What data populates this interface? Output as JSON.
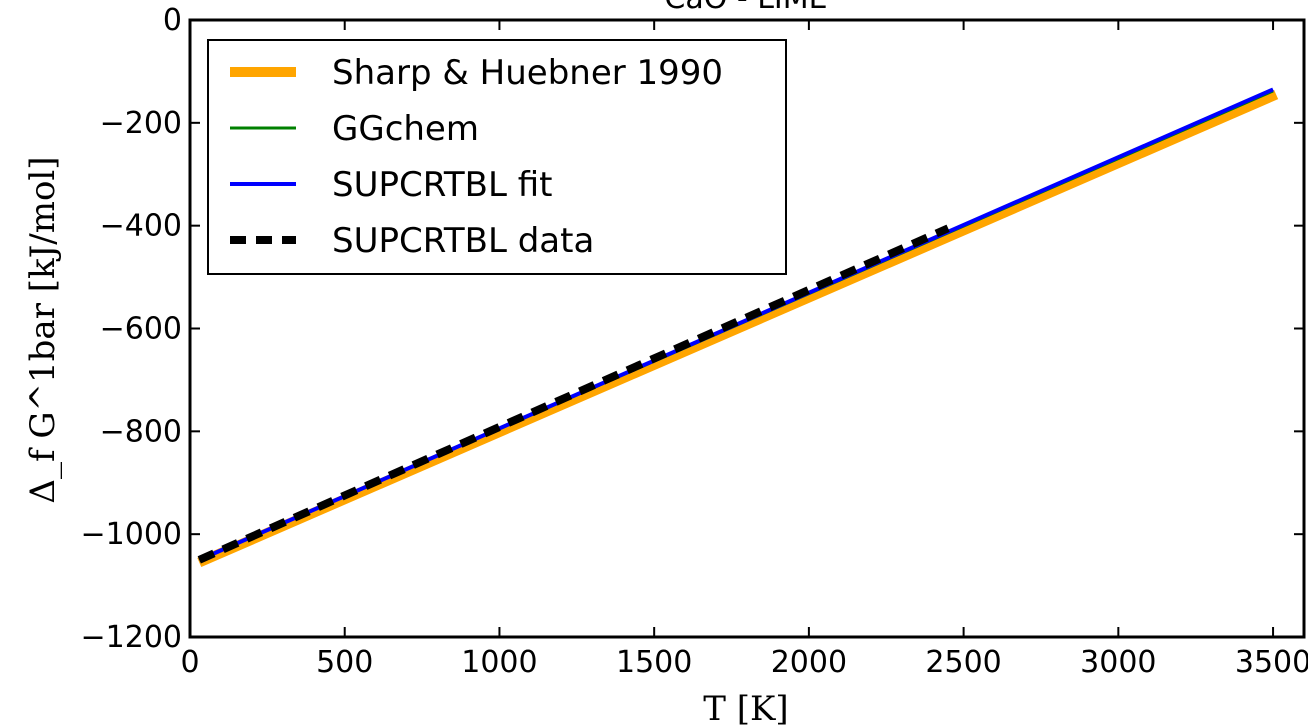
{
  "chart_data": {
    "type": "line",
    "title": "CaO - LIME",
    "xlabel": "T [K]",
    "ylabel": "Δ_f G^1bar [kJ/mol]",
    "xlim": [
      0,
      3600
    ],
    "ylim": [
      -1200,
      0
    ],
    "xticks": [
      0,
      500,
      1000,
      1500,
      2000,
      2500,
      3000,
      3500
    ],
    "yticks": [
      0,
      -200,
      -400,
      -600,
      -800,
      -1000,
      -1200
    ],
    "xtick_labels": [
      "0",
      "500",
      "1000",
      "1500",
      "2000",
      "2500",
      "3000",
      "3500"
    ],
    "ytick_labels": [
      "0",
      "−200",
      "−400",
      "−600",
      "−800",
      "−1000",
      "−1200"
    ],
    "grid": false,
    "legend_position": "top-left",
    "series": [
      {
        "name": "Sharp & Huebner 1990",
        "color": "#FFA500",
        "style": "solid-thick",
        "x": [
          30,
          3510
        ],
        "y": [
          -1055,
          -145
        ]
      },
      {
        "name": "GGchem",
        "color": "#008000",
        "style": "solid-thin",
        "x": [
          30,
          3500
        ],
        "y": [
          -1050,
          -138
        ]
      },
      {
        "name": "SUPCRTBL fit",
        "color": "#0000FF",
        "style": "solid",
        "x": [
          30,
          3500
        ],
        "y": [
          -1050,
          -135
        ]
      },
      {
        "name": "SUPCRTBL data",
        "color": "#000000",
        "style": "dashed",
        "x": [
          30,
          2450
        ],
        "y": [
          -1050,
          -405
        ]
      }
    ]
  }
}
